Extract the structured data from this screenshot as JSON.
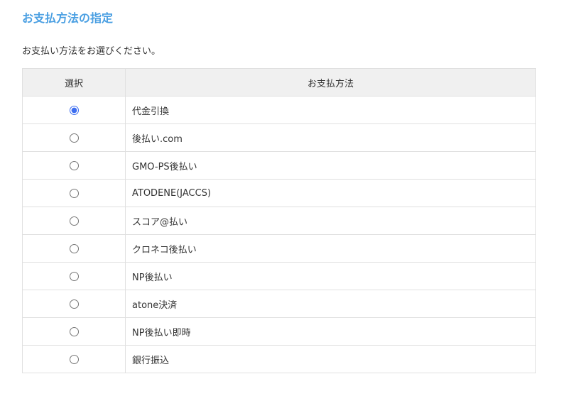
{
  "title": "お支払方法の指定",
  "description": "お支払い方法をお選びください。",
  "table": {
    "headers": [
      "選択",
      "お支払方法"
    ],
    "selected_index": 0,
    "rows": [
      {
        "label": "代金引換"
      },
      {
        "label": "後払い.com"
      },
      {
        "label": "GMO-PS後払い"
      },
      {
        "label": "ATODENE(JACCS)"
      },
      {
        "label": "スコア@払い"
      },
      {
        "label": "クロネコ後払い"
      },
      {
        "label": "NP後払い"
      },
      {
        "label": "atone決済"
      },
      {
        "label": "NP後払い即時"
      },
      {
        "label": "銀行振込"
      }
    ]
  },
  "colors": {
    "title": "#4a9fe2",
    "radio_accent": "#3d6ef0",
    "header_bg": "#f0f0f0"
  }
}
